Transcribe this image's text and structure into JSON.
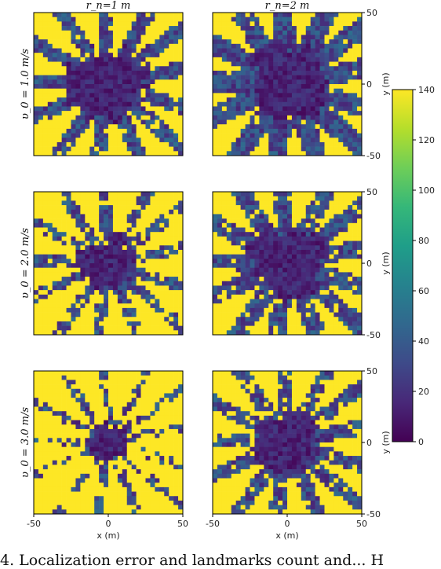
{
  "chart_data": {
    "type": "heatmap",
    "layout": "3 rows x 2 columns",
    "column_titles": [
      "r_n=1 m",
      "r_n=2 m"
    ],
    "row_titles": [
      "υ_0 = 1.0 m/s",
      "υ_0 = 2.0 m/s",
      "υ_0 = 3.0 m/s"
    ],
    "xlabel": "x (m)",
    "ylabel": "y (m)",
    "xlim": [
      -50,
      50
    ],
    "ylim": [
      -50,
      50
    ],
    "xticks": [
      -50,
      0,
      50
    ],
    "yticks": [
      50,
      0,
      -50
    ],
    "colorbar": {
      "min": 0,
      "max": 140,
      "ticks": [
        0,
        20,
        40,
        60,
        80,
        100,
        120,
        140
      ],
      "colormap": "viridis"
    },
    "grid_cells_per_side": 32,
    "description_values": "Each panel: low values (~0-30) in a central star-shaped region with radiating spokes; background saturated at ~140.",
    "panels": [
      {
        "row": 0,
        "col": 0,
        "core_radius_m": 25,
        "spoke_width": 1.6,
        "spoke_fill": 0.95
      },
      {
        "row": 0,
        "col": 1,
        "core_radius_m": 26,
        "spoke_width": 2.2,
        "spoke_fill": 0.97
      },
      {
        "row": 1,
        "col": 0,
        "core_radius_m": 18,
        "spoke_width": 1.2,
        "spoke_fill": 0.75
      },
      {
        "row": 1,
        "col": 1,
        "core_radius_m": 24,
        "spoke_width": 1.9,
        "spoke_fill": 0.92
      },
      {
        "row": 2,
        "col": 0,
        "core_radius_m": 13,
        "spoke_width": 0.9,
        "spoke_fill": 0.6
      },
      {
        "row": 2,
        "col": 1,
        "core_radius_m": 20,
        "spoke_width": 1.6,
        "spoke_fill": 0.85
      }
    ]
  },
  "caption": {
    "visible_text": "4. Localization error and landmarks count and...  H"
  }
}
